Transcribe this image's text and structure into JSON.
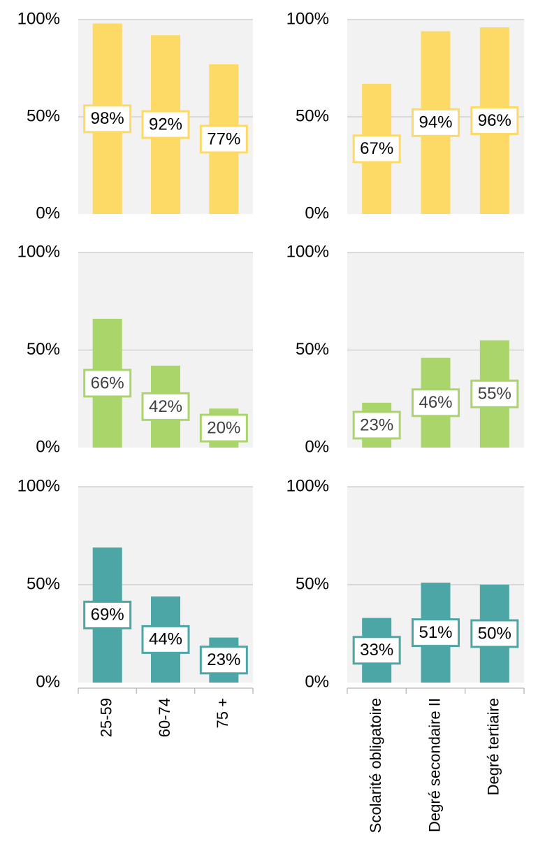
{
  "chart_data": [
    {
      "type": "bar",
      "categories": [
        "25-59",
        "60-74",
        "75 +"
      ],
      "values": [
        98,
        92,
        77
      ],
      "labels": [
        "98%",
        "92%",
        "77%"
      ],
      "ylim": [
        0,
        100
      ],
      "yticks": [
        "0%",
        "50%",
        "100%"
      ],
      "color": "#FDD965",
      "grid": true
    },
    {
      "type": "bar",
      "categories": [
        "Scolarité obligatoire",
        "Degré secondaire II",
        "Degré tertiaire"
      ],
      "values": [
        67,
        94,
        96
      ],
      "labels": [
        "67%",
        "94%",
        "96%"
      ],
      "ylim": [
        0,
        100
      ],
      "yticks": [
        "0%",
        "50%",
        "100%"
      ],
      "color": "#FDD965",
      "grid": true
    },
    {
      "type": "bar",
      "categories": [
        "25-59",
        "60-74",
        "75 +"
      ],
      "values": [
        66,
        42,
        20
      ],
      "labels": [
        "66%",
        "42%",
        "20%"
      ],
      "ylim": [
        0,
        100
      ],
      "yticks": [
        "0%",
        "50%",
        "100%"
      ],
      "color": "#A9D56B",
      "grid": true
    },
    {
      "type": "bar",
      "categories": [
        "Scolarité obligatoire",
        "Degré secondaire II",
        "Degré tertiaire"
      ],
      "values": [
        23,
        46,
        55
      ],
      "labels": [
        "23%",
        "46%",
        "55%"
      ],
      "ylim": [
        0,
        100
      ],
      "yticks": [
        "0%",
        "50%",
        "100%"
      ],
      "color": "#A9D56B",
      "grid": true
    },
    {
      "type": "bar",
      "categories": [
        "25-59",
        "60-74",
        "75 +"
      ],
      "values": [
        69,
        44,
        23
      ],
      "labels": [
        "69%",
        "44%",
        "23%"
      ],
      "ylim": [
        0,
        100
      ],
      "yticks": [
        "0%",
        "50%",
        "100%"
      ],
      "color": "#4CA6A5",
      "grid": true
    },
    {
      "type": "bar",
      "categories": [
        "Scolarité obligatoire",
        "Degré secondaire II",
        "Degré tertiaire"
      ],
      "values": [
        33,
        51,
        50
      ],
      "labels": [
        "33%",
        "51%",
        "50%"
      ],
      "ylim": [
        0,
        100
      ],
      "yticks": [
        "0%",
        "50%",
        "100%"
      ],
      "color": "#4CA6A5",
      "grid": true
    }
  ]
}
